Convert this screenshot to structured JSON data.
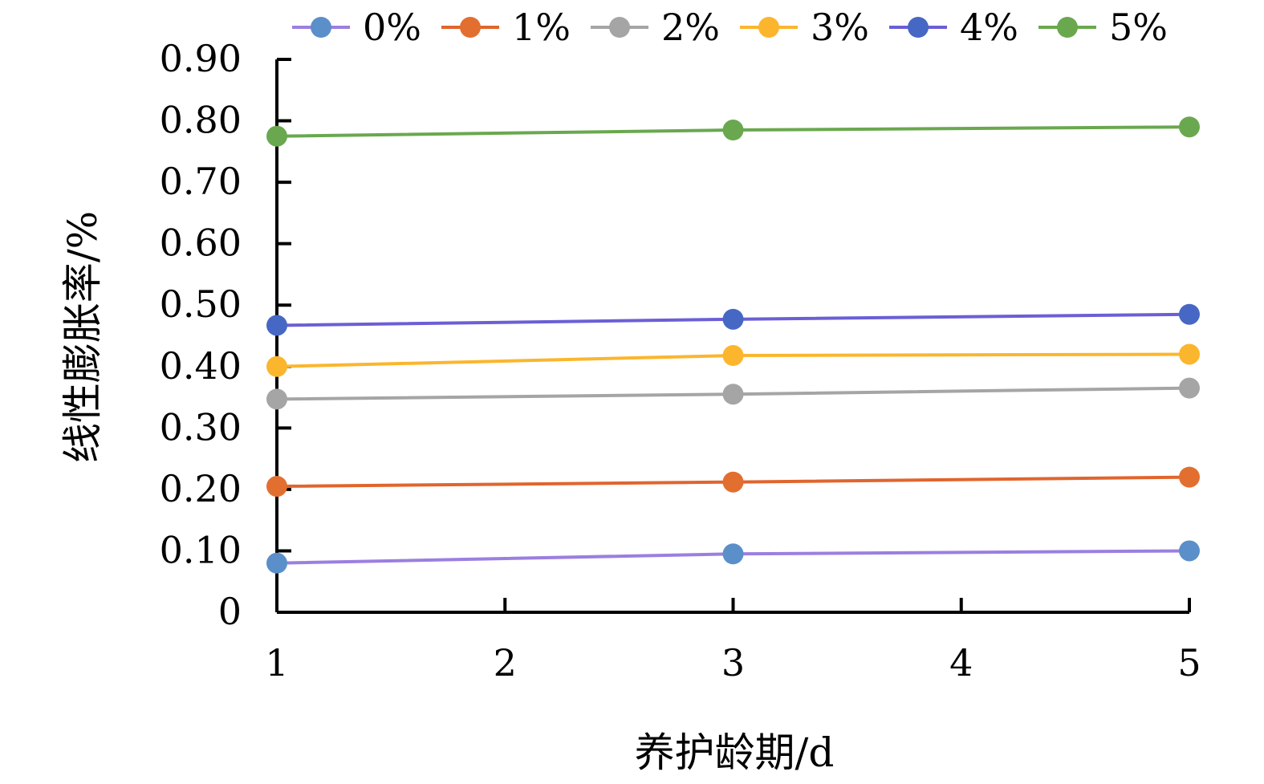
{
  "chart_data": {
    "type": "line",
    "title": "",
    "xlabel": "养护龄期/d",
    "ylabel": "线性膨胀率/%",
    "x": [
      1,
      3,
      5
    ],
    "xlim": [
      1,
      5
    ],
    "ylim": [
      0,
      0.9
    ],
    "x_ticks": [
      1,
      2,
      3,
      4,
      5
    ],
    "y_ticks": [
      0,
      0.1,
      0.2,
      0.3,
      0.4,
      0.5,
      0.6,
      0.7,
      0.8,
      0.9
    ],
    "y_tick_labels": [
      "0",
      "0.10",
      "0.20",
      "0.30",
      "0.40",
      "0.50",
      "0.60",
      "0.70",
      "0.80",
      "0.90"
    ],
    "x_tick_labels": [
      "1",
      "2",
      "3",
      "4",
      "5"
    ],
    "grid": false,
    "legend_position": "top",
    "series": [
      {
        "name": "0%",
        "values": [
          0.08,
          0.095,
          0.1
        ],
        "marker_color": "#5b8fc9",
        "line_color": "#9b7fe0"
      },
      {
        "name": "1%",
        "values": [
          0.205,
          0.212,
          0.22
        ],
        "marker_color": "#e26f2f",
        "line_color": "#e0652e"
      },
      {
        "name": "2%",
        "values": [
          0.347,
          0.355,
          0.365
        ],
        "marker_color": "#a5a5a5",
        "line_color": "#a5a5a5"
      },
      {
        "name": "3%",
        "values": [
          0.4,
          0.418,
          0.42
        ],
        "marker_color": "#fbb62e",
        "line_color": "#fbb62e"
      },
      {
        "name": "4%",
        "values": [
          0.467,
          0.477,
          0.485
        ],
        "marker_color": "#4668c4",
        "line_color": "#6b5fd6"
      },
      {
        "name": "5%",
        "values": [
          0.775,
          0.785,
          0.79
        ],
        "marker_color": "#6aa84f",
        "line_color": "#6aa84f"
      }
    ]
  }
}
